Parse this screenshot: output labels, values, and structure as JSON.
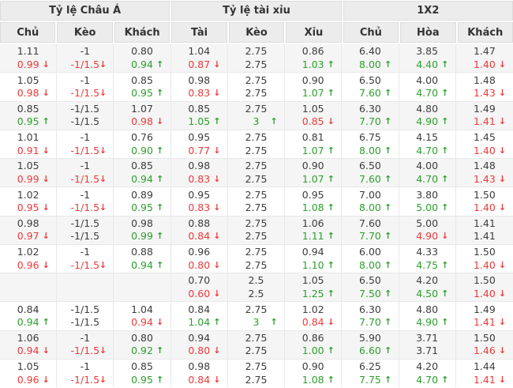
{
  "colors": {
    "up": "#2da02d",
    "down": "#ee3a3a",
    "neutral": "#3d3d3d",
    "header_bg": "#ececec",
    "stripe_bg": "#f5f5f5",
    "border": "#e8e8e8"
  },
  "icons": {
    "trend_up": "↑",
    "trend_down": "↓"
  },
  "table": {
    "sections": [
      {
        "label": "Tỷ lệ Châu Á",
        "cols": [
          "Chủ",
          "Kèo",
          "Khách"
        ]
      },
      {
        "label": "Tỷ lệ tài xỉu",
        "cols": [
          "Tài",
          "Kèo",
          "Xỉu"
        ]
      },
      {
        "label": "1X2",
        "cols": [
          "Chủ",
          "Hòa",
          "Khách"
        ]
      }
    ],
    "rows": [
      {
        "line1": [
          "1.11",
          "-1",
          "0.80",
          "1.04",
          "2.75",
          "0.86",
          "6.40",
          "3.85",
          "1.47"
        ],
        "line2": [
          "0.99|d",
          "-1/1.5|d",
          "0.94|u",
          "0.87|d",
          "2.75",
          "1.03|u",
          "8.00|u",
          "4.40|u",
          "1.40|d"
        ]
      },
      {
        "line1": [
          "1.05",
          "-1",
          "0.85",
          "0.98",
          "2.75",
          "0.90",
          "6.50",
          "4.00",
          "1.48"
        ],
        "line2": [
          "0.98|d",
          "-1/1.5|d",
          "0.95|u",
          "0.83|d",
          "2.75",
          "1.07|u",
          "7.60|u",
          "4.70|u",
          "1.43|d"
        ]
      },
      {
        "line1": [
          "0.85",
          "-1/1.5",
          "1.07",
          "0.85",
          "2.75",
          "1.05",
          "6.30",
          "4.80",
          "1.49"
        ],
        "line2": [
          "0.95|u",
          "-1/1.5",
          "0.98|d",
          "1.05|u",
          "3|u",
          "0.85|d",
          "7.70|u",
          "4.90|u",
          "1.41|d"
        ]
      },
      {
        "line1": [
          "1.01",
          "-1",
          "0.76",
          "0.95",
          "2.75",
          "0.81",
          "6.75",
          "4.15",
          "1.45"
        ],
        "line2": [
          "0.91|d",
          "-1/1.5|d",
          "0.90|u",
          "0.77|d",
          "2.75",
          "1.07|u",
          "8.00|u",
          "4.70|u",
          "1.40|d"
        ]
      },
      {
        "line1": [
          "1.05",
          "-1",
          "0.85",
          "0.98",
          "2.75",
          "0.90",
          "6.50",
          "4.00",
          "1.48"
        ],
        "line2": [
          "0.99|d",
          "-1/1.5|d",
          "0.94|u",
          "0.83|d",
          "2.75",
          "1.07|u",
          "7.60|u",
          "4.70|u",
          "1.43|d"
        ]
      },
      {
        "line1": [
          "1.02",
          "-1",
          "0.89",
          "0.95",
          "2.75",
          "0.95",
          "7.00",
          "3.80",
          "1.50"
        ],
        "line2": [
          "0.95|d",
          "-1/1.5|d",
          "0.95|u",
          "0.83|d",
          "2.75",
          "1.08|u",
          "8.00|u",
          "5.00|u",
          "1.40|d"
        ]
      },
      {
        "line1": [
          "0.98",
          "-1/1.5",
          "0.98",
          "0.88",
          "2.75",
          "1.06",
          "7.60",
          "5.00",
          "1.41"
        ],
        "line2": [
          "0.97|d",
          "-1/1.5",
          "0.99|u",
          "0.84|d",
          "2.75",
          "1.11|u",
          "7.70|u",
          "4.90|d",
          "1.41"
        ]
      },
      {
        "line1": [
          "1.02",
          "-1",
          "0.88",
          "0.96",
          "2.75",
          "0.94",
          "6.00",
          "4.33",
          "1.50"
        ],
        "line2": [
          "0.96|d",
          "-1/1.5|d",
          "0.94|u",
          "0.80|d",
          "2.75",
          "1.10|u",
          "8.00|u",
          "4.75|u",
          "1.40|d"
        ]
      },
      {
        "line1": [
          "",
          "",
          "",
          "0.70",
          "2.5",
          "1.05",
          "6.50",
          "4.20",
          "1.50"
        ],
        "line2": [
          "",
          "",
          "",
          "0.60|d",
          "2.5",
          "1.25|u",
          "7.50|u",
          "4.50|u",
          "1.40|d"
        ]
      },
      {
        "line1": [
          "0.84",
          "-1/1.5",
          "1.04",
          "0.84",
          "2.75",
          "1.02",
          "6.30",
          "4.80",
          "1.49"
        ],
        "line2": [
          "0.94|u",
          "-1/1.5",
          "0.94|d",
          "1.04|u",
          "3|u",
          "0.84|d",
          "7.70|u",
          "4.90|u",
          "1.41|d"
        ]
      },
      {
        "line1": [
          "1.06",
          "-1",
          "0.80",
          "0.94",
          "2.75",
          "0.86",
          "5.90",
          "3.71",
          "1.50"
        ],
        "line2": [
          "0.94|d",
          "-1/1.5|d",
          "0.92|u",
          "0.80|d",
          "2.75",
          "1.00|u",
          "6.60|u",
          "3.71",
          "1.46|d"
        ]
      },
      {
        "line1": [
          "1.05",
          "-1",
          "0.85",
          "0.98",
          "2.75",
          "0.90",
          "6.25",
          "4.20",
          "1.44"
        ],
        "line2": [
          "0.96|d",
          "-1/1.5|d",
          "0.95|u",
          "0.84|d",
          "2.75",
          "1.08|u",
          "7.75|u",
          "4.70|u",
          "1.41|d"
        ]
      }
    ]
  }
}
